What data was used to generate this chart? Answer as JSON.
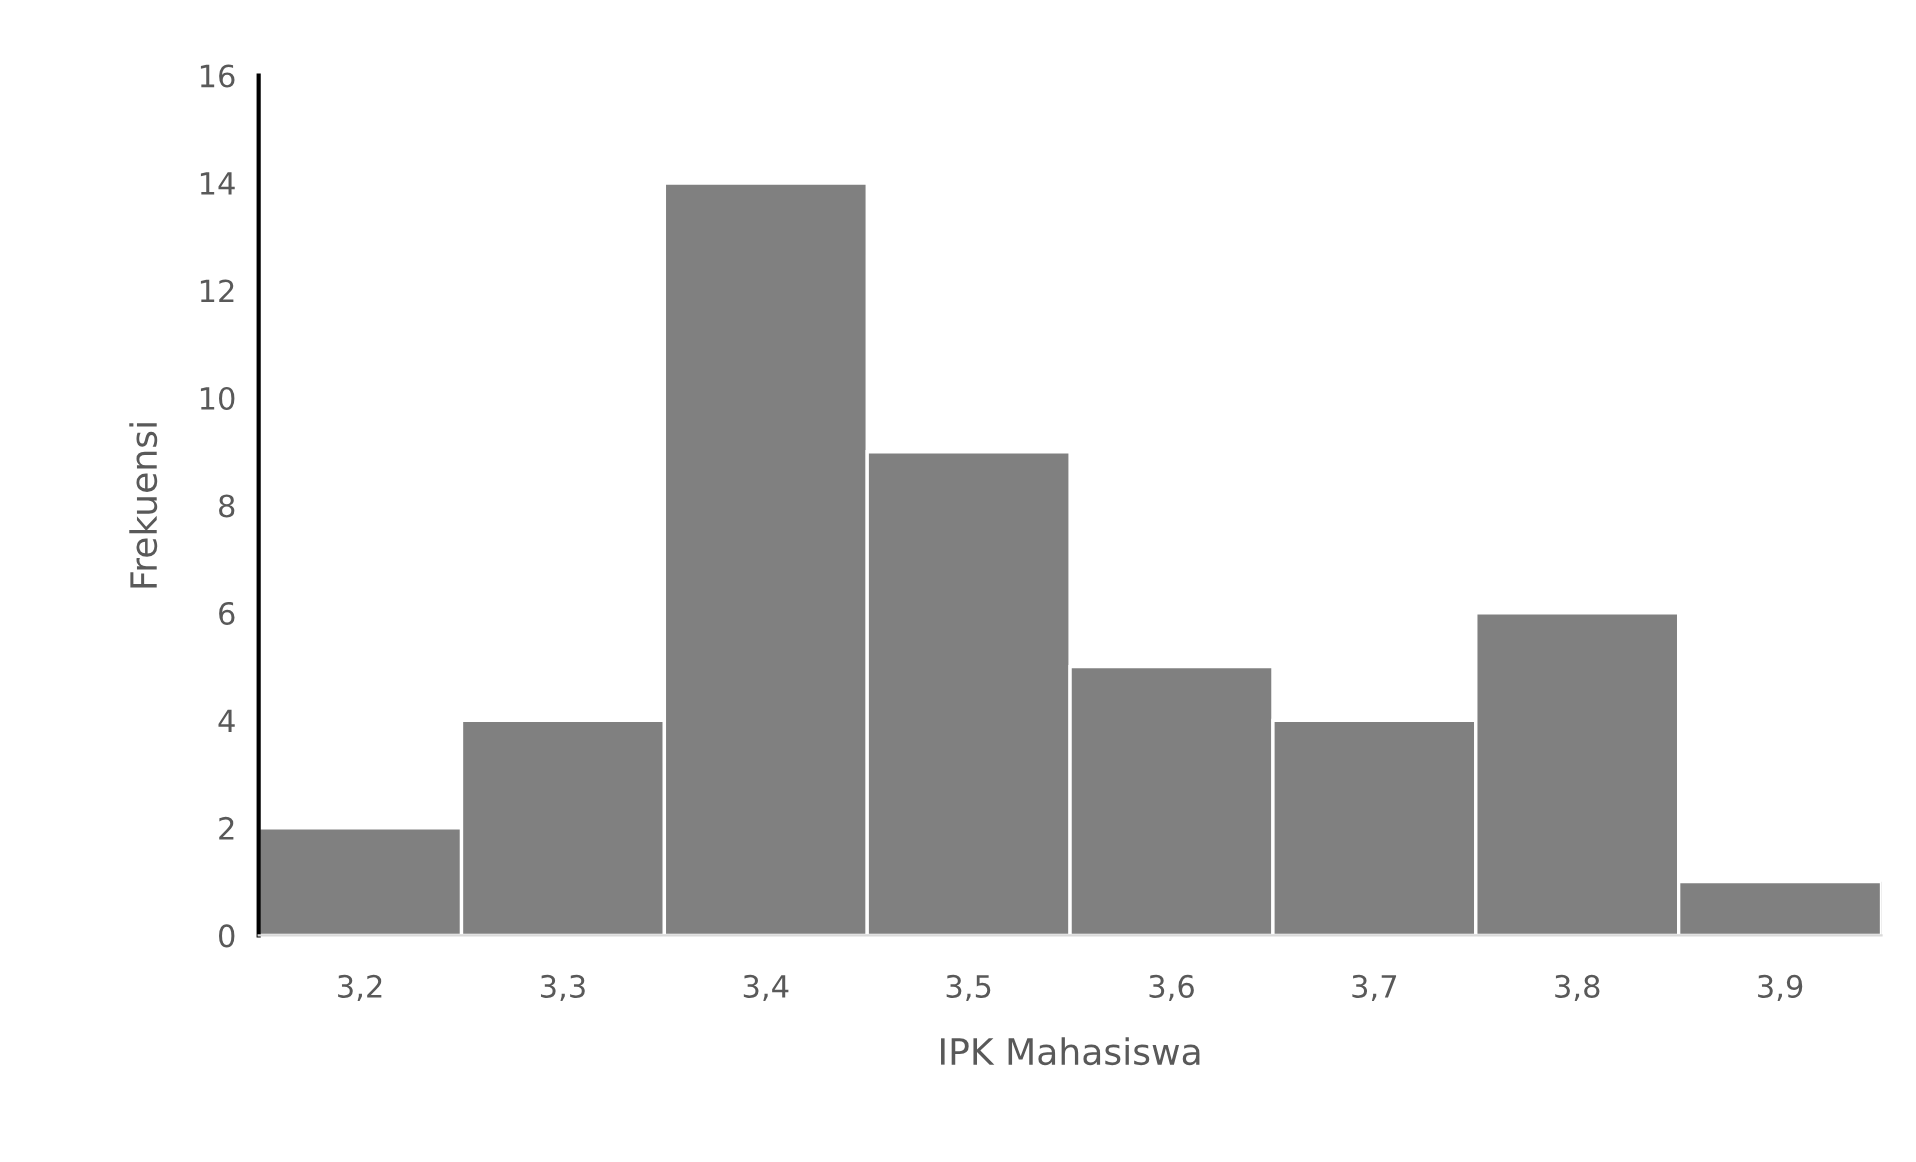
{
  "chart_data": {
    "type": "bar",
    "xlabel": "IPK Mahasiswa",
    "ylabel": "Frekuensi",
    "categories": [
      "3,2",
      "3,3",
      "3,4",
      "3,5",
      "3,6",
      "3,7",
      "3,8",
      "3,9"
    ],
    "values": [
      2,
      4,
      14,
      9,
      5,
      4,
      6,
      1
    ],
    "color": "#808080",
    "ylim": [
      0,
      16
    ],
    "yticks": [
      0,
      2,
      4,
      6,
      8,
      10,
      12,
      14,
      16
    ],
    "grid": false,
    "legend": false
  }
}
